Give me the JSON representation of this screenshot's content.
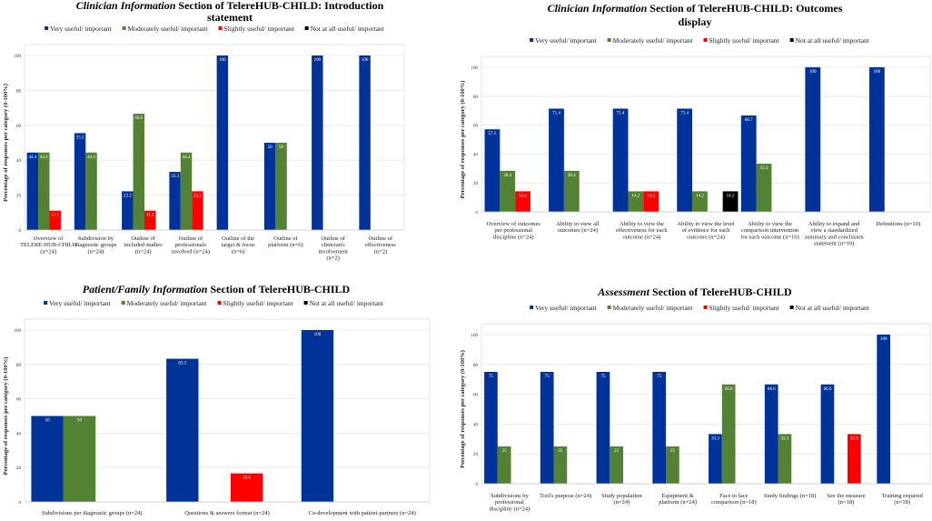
{
  "colors": {
    "very": "#003399",
    "moderately": "#548235",
    "slightly": "#ff0000",
    "not_at_all": "#000000",
    "grid": "#e6e6e6"
  },
  "chart_data": [
    {
      "type": "bar",
      "title_italic": "Clinician Information",
      "title_rest": "Section of TelereHUB-CHILD: Introduction statement",
      "ylabel": "Percentage of responses per category (0-100%)",
      "xlabel": "",
      "ylim": [
        0,
        100
      ],
      "yticks": [
        0,
        20,
        40,
        60,
        80,
        100
      ],
      "legend_position": "top",
      "grid": true,
      "categories": [
        "Overview of TELERE-HUB-CHILD (n=24)",
        "Subdivision by diagnostic groups (n=24)",
        "Outline of included studies (n=24)",
        "Outline of professionals involved (n=24)",
        "Outline of the target & focus (n=6)",
        "Outline of platform (n=6)",
        "Outline of clinician's involvement (n=2)",
        "Outline of effectiveness (n=2)"
      ],
      "series": [
        {
          "name": "Very useful/ important",
          "values": [
            44.4,
            55.5,
            22.2,
            33.3,
            100,
            50,
            100,
            100
          ]
        },
        {
          "name": "Moderately useful/ important",
          "values": [
            44.4,
            44.4,
            66.6,
            44.4,
            0,
            50,
            0,
            0
          ]
        },
        {
          "name": "Slightly useful/ important",
          "values": [
            11.1,
            0,
            11.1,
            22.2,
            0,
            0,
            0,
            0
          ]
        },
        {
          "name": "Not at all useful/ important",
          "values": [
            0,
            0,
            0,
            0,
            0,
            0,
            0,
            0
          ]
        }
      ]
    },
    {
      "type": "bar",
      "title_italic": "Clinician Information",
      "title_rest": "Section of TelereHUB-CHILD: Outcomes display",
      "ylabel": "Percentage of responses per category (0-100%)",
      "xlabel": "",
      "ylim": [
        0,
        100
      ],
      "yticks": [
        0,
        20,
        40,
        60,
        80,
        100
      ],
      "legend_position": "top",
      "grid": true,
      "categories": [
        "Overview of outcomes per professional discipline (n=24)",
        "Ability to view all outcomes (n=24)",
        "Ability to view the effectiveness for each outcome (n=24)",
        "Ability to view the level of evidence for each outcome (n=24)",
        "Abiilty to view the comparison intervention for each outcome (n=10)",
        "Ability to expand and view a standardized summary and conclusion statement (n=10)",
        "Definitions (n=10)"
      ],
      "series": [
        {
          "name": "Very useful/ important",
          "values": [
            57.1,
            71.4,
            71.4,
            71.4,
            66.7,
            100,
            100
          ]
        },
        {
          "name": "Moderately useful/ important",
          "values": [
            28.4,
            28.4,
            14.2,
            14.2,
            33.3,
            0,
            0
          ]
        },
        {
          "name": "Slightly useful/ important",
          "values": [
            14.2,
            0,
            14.2,
            0,
            0,
            0,
            0
          ]
        },
        {
          "name": "Not at all useful/ important",
          "values": [
            0,
            0,
            0,
            14.2,
            0,
            0,
            0
          ]
        }
      ]
    },
    {
      "type": "bar",
      "title_italic": "Patient/Family Information",
      "title_rest": "Section of TelereHUB-CHILD",
      "ylabel": "Percentage of responses per category (0-100%)",
      "xlabel": "",
      "ylim": [
        0,
        100
      ],
      "yticks": [
        0,
        20,
        40,
        60,
        80,
        100
      ],
      "legend_position": "top",
      "grid": true,
      "categories": [
        "Subdivisions per diagnostic groups (n=24)",
        "Questions & answers format (n=24)",
        "Co-development with patient-partners (n=24)"
      ],
      "series": [
        {
          "name": "Very useful/ important",
          "values": [
            50,
            83.3,
            100
          ]
        },
        {
          "name": "Moderately useful/ important",
          "values": [
            50,
            0,
            0
          ]
        },
        {
          "name": "Slightly useful/ important",
          "values": [
            0,
            16.6,
            0
          ]
        },
        {
          "name": "Not at all useful/ important",
          "values": [
            0,
            0,
            0
          ]
        }
      ]
    },
    {
      "type": "bar",
      "title_italic": "Assessment",
      "title_rest": "Section of TelereHUB-CHILD",
      "ylabel": "Percentage of responses per category (0-100%)",
      "xlabel": "",
      "ylim": [
        0,
        100
      ],
      "yticks": [
        0,
        20,
        40,
        60,
        80,
        100
      ],
      "legend_position": "top",
      "grid": true,
      "categories": [
        "Subdivisions by professional discipline (n=24)",
        "Tool's purpose (n=24)",
        "Study population (n=24)",
        "Equipment & platform (n=24)",
        "Face to face comparison (n=18)",
        "Study findings (n=18)",
        "See the measure (n=18)",
        "Training required (n=18)"
      ],
      "series": [
        {
          "name": "Very useful/ important",
          "values": [
            75,
            75,
            75,
            75,
            33.3,
            66.6,
            66.6,
            100
          ]
        },
        {
          "name": "Moderately useful/ important",
          "values": [
            25,
            25,
            25,
            25,
            66.6,
            33.3,
            0,
            0
          ]
        },
        {
          "name": "Slightly useful/ important",
          "values": [
            0,
            0,
            0,
            0,
            0,
            0,
            33.3,
            0
          ]
        },
        {
          "name": "Not at all useful/ important",
          "values": [
            0,
            0,
            0,
            0,
            0,
            0,
            0,
            0
          ]
        }
      ]
    }
  ]
}
